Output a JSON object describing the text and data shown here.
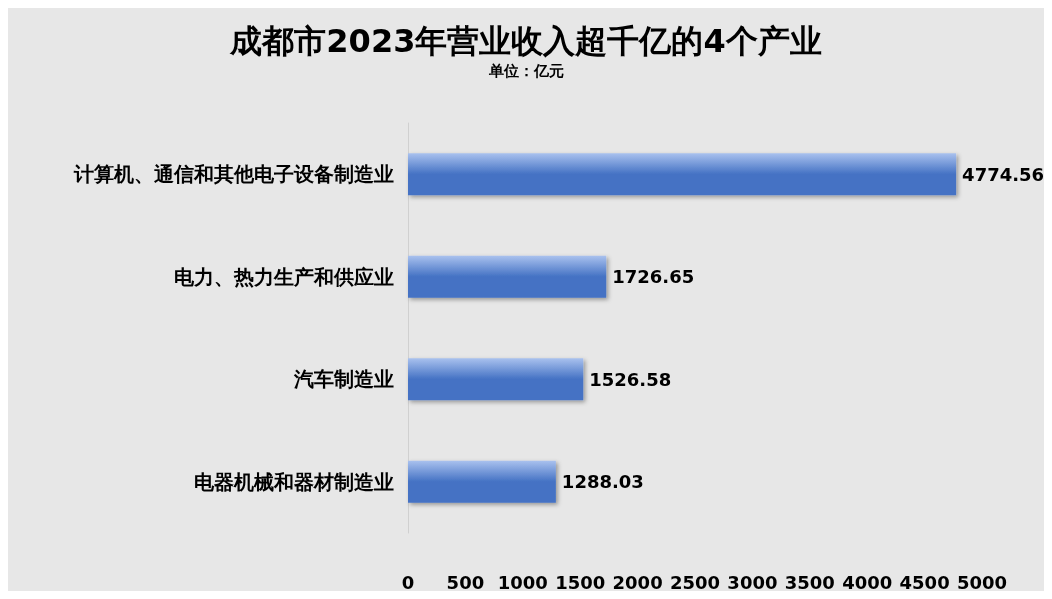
{
  "chart_data": {
    "type": "bar",
    "orientation": "horizontal",
    "title": "成都市2023年营业收入超千亿的4个产业",
    "subtitle": "单位：亿元",
    "categories": [
      "计算机、通信和其他电子设备制造业",
      "电力、热力生产和供应业",
      "汽车制造业",
      "电器机械和器材制造业"
    ],
    "values": [
      4774.56,
      1726.65,
      1526.58,
      1288.03
    ],
    "color": "#4472c4",
    "xlim": [
      0,
      5000
    ],
    "xticks": [
      0,
      500,
      1000,
      1500,
      2000,
      2500,
      3000,
      3500,
      4000,
      4500,
      5000
    ],
    "grid": false,
    "data_labels": true
  }
}
